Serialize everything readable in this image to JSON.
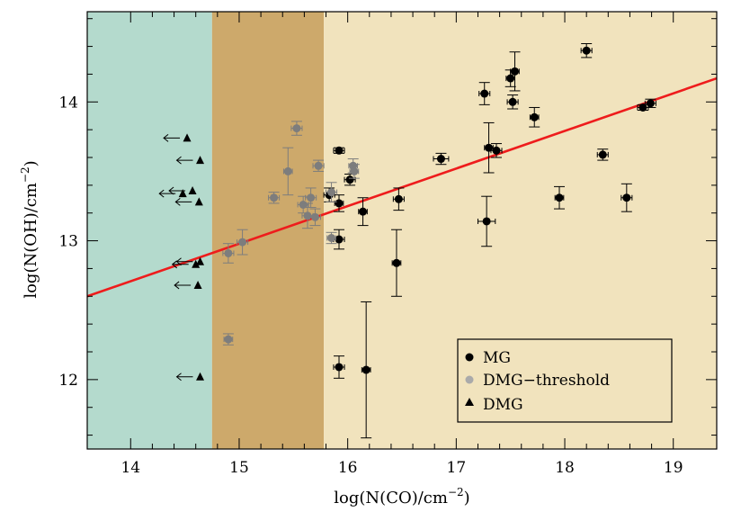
{
  "chart_data": {
    "type": "scatter",
    "xlabel": "log(N(CO)/cm",
    "xlabel_sup": "−2",
    "xlabel_close": ")",
    "ylabel": "log(N(OH)/cm",
    "ylabel_sup": "−2",
    "ylabel_close": ")",
    "xlim": [
      13.6,
      19.4
    ],
    "ylim": [
      11.5,
      14.65
    ],
    "x_ticks": [
      "14",
      "15",
      "16",
      "17",
      "18",
      "19"
    ],
    "y_ticks": [
      "12",
      "13",
      "14"
    ],
    "legend_position": "bottom-right",
    "regions": [
      {
        "from": 13.6,
        "to": 14.75,
        "color": "#b4dacd"
      },
      {
        "from": 14.75,
        "to": 15.78,
        "color": "#cda96b"
      },
      {
        "from": 15.78,
        "to": 19.4,
        "color": "#f1e3bd"
      }
    ],
    "fit_line": {
      "x": [
        13.6,
        19.4
      ],
      "y": [
        12.6,
        14.17
      ],
      "color": "#ee1c1c"
    },
    "series": [
      {
        "name": "MG",
        "color": "#000000",
        "marker": "circle",
        "points": [
          {
            "x": 15.92,
            "y": 13.65,
            "xerr": 0.05,
            "yerr": 0.02
          },
          {
            "x": 15.83,
            "y": 13.33,
            "xerr": 0.05,
            "yerr": 0.05
          },
          {
            "x": 15.92,
            "y": 13.27,
            "xerr": 0.04,
            "yerr": 0.06
          },
          {
            "x": 15.92,
            "y": 13.01,
            "xerr": 0.05,
            "yerr": 0.07
          },
          {
            "x": 16.02,
            "y": 13.44,
            "xerr": 0.05,
            "yerr": 0.04
          },
          {
            "x": 16.14,
            "y": 13.21,
            "xerr": 0.04,
            "yerr": 0.1
          },
          {
            "x": 15.92,
            "y": 12.09,
            "xerr": 0.05,
            "yerr": 0.08
          },
          {
            "x": 16.17,
            "y": 12.07,
            "xerr": 0.04,
            "yerr": 0.49
          },
          {
            "x": 16.47,
            "y": 13.3,
            "xerr": 0.05,
            "yerr": 0.08
          },
          {
            "x": 16.45,
            "y": 12.84,
            "xerr": 0.04,
            "yerr": 0.24
          },
          {
            "x": 16.86,
            "y": 13.59,
            "xerr": 0.07,
            "yerr": 0.04
          },
          {
            "x": 17.26,
            "y": 14.06,
            "xerr": 0.05,
            "yerr": 0.08
          },
          {
            "x": 17.3,
            "y": 13.67,
            "xerr": 0.04,
            "yerr": 0.18
          },
          {
            "x": 17.28,
            "y": 13.14,
            "xerr": 0.08,
            "yerr": 0.18
          },
          {
            "x": 17.37,
            "y": 13.65,
            "xerr": 0.05,
            "yerr": 0.05
          },
          {
            "x": 17.5,
            "y": 14.17,
            "xerr": 0.04,
            "yerr": 0.06
          },
          {
            "x": 17.54,
            "y": 14.22,
            "xerr": 0.04,
            "yerr": 0.14
          },
          {
            "x": 17.52,
            "y": 14.0,
            "xerr": 0.05,
            "yerr": 0.05
          },
          {
            "x": 17.72,
            "y": 13.89,
            "xerr": 0.04,
            "yerr": 0.07
          },
          {
            "x": 17.95,
            "y": 13.31,
            "xerr": 0.04,
            "yerr": 0.08
          },
          {
            "x": 18.2,
            "y": 14.37,
            "xerr": 0.05,
            "yerr": 0.05
          },
          {
            "x": 18.35,
            "y": 13.62,
            "xerr": 0.05,
            "yerr": 0.04
          },
          {
            "x": 18.57,
            "y": 13.31,
            "xerr": 0.05,
            "yerr": 0.1
          },
          {
            "x": 18.72,
            "y": 13.96,
            "xerr": 0.05,
            "yerr": 0.02
          },
          {
            "x": 18.79,
            "y": 13.99,
            "xerr": 0.05,
            "yerr": 0.03
          }
        ]
      },
      {
        "name": "DMG−threshold",
        "color": "#7d7d7d",
        "marker": "circle",
        "points": [
          {
            "x": 14.9,
            "y": 12.91,
            "xerr": 0.05,
            "yerr": 0.07
          },
          {
            "x": 15.03,
            "y": 12.99,
            "xerr": 0.05,
            "yerr": 0.09
          },
          {
            "x": 14.9,
            "y": 12.29,
            "xerr": 0.04,
            "yerr": 0.04
          },
          {
            "x": 15.32,
            "y": 13.31,
            "xerr": 0.05,
            "yerr": 0.04
          },
          {
            "x": 15.45,
            "y": 13.5,
            "xerr": 0.04,
            "yerr": 0.17
          },
          {
            "x": 15.53,
            "y": 13.81,
            "xerr": 0.05,
            "yerr": 0.05
          },
          {
            "x": 15.59,
            "y": 13.26,
            "xerr": 0.05,
            "yerr": 0.06
          },
          {
            "x": 15.63,
            "y": 13.18,
            "xerr": 0.05,
            "yerr": 0.09
          },
          {
            "x": 15.66,
            "y": 13.31,
            "xerr": 0.05,
            "yerr": 0.07
          },
          {
            "x": 15.7,
            "y": 13.17,
            "xerr": 0.05,
            "yerr": 0.06
          },
          {
            "x": 15.73,
            "y": 13.54,
            "xerr": 0.05,
            "yerr": 0.04
          },
          {
            "x": 15.85,
            "y": 13.35,
            "xerr": 0.05,
            "yerr": 0.07
          },
          {
            "x": 15.85,
            "y": 13.02,
            "xerr": 0.04,
            "yerr": 0.04
          },
          {
            "x": 16.05,
            "y": 13.54,
            "xerr": 0.04,
            "yerr": 0.05
          },
          {
            "x": 16.06,
            "y": 13.5,
            "xerr": 0.04,
            "yerr": 0.05
          }
        ]
      },
      {
        "name": "DMG",
        "color": "#000000",
        "marker": "triangle",
        "upper_limit_arrow": "left",
        "points": [
          {
            "x": 14.52,
            "y": 13.74
          },
          {
            "x": 14.64,
            "y": 13.58
          },
          {
            "x": 14.57,
            "y": 13.36
          },
          {
            "x": 14.48,
            "y": 13.34
          },
          {
            "x": 14.63,
            "y": 13.28
          },
          {
            "x": 14.64,
            "y": 12.85
          },
          {
            "x": 14.6,
            "y": 12.83
          },
          {
            "x": 14.62,
            "y": 12.68
          },
          {
            "x": 14.64,
            "y": 12.02
          }
        ]
      }
    ]
  }
}
